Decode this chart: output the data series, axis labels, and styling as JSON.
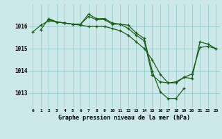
{
  "title": "Graphe pression niveau de la mer (hPa)",
  "bg_color": "#cce8e8",
  "grid_color": "#99cccc",
  "line_color": "#1a5c1a",
  "xlim": [
    -0.5,
    23.5
  ],
  "ylim": [
    1012.3,
    1017.0
  ],
  "yticks": [
    1013,
    1014,
    1015,
    1016
  ],
  "xticks": [
    0,
    1,
    2,
    3,
    4,
    5,
    6,
    7,
    8,
    9,
    10,
    11,
    12,
    13,
    14,
    15,
    16,
    17,
    18,
    19,
    20,
    21,
    22,
    23
  ],
  "series": [
    [
      null,
      1015.85,
      1016.35,
      1016.2,
      1016.15,
      1016.1,
      1016.1,
      1016.55,
      1016.35,
      1016.35,
      1016.15,
      1016.1,
      1016.05,
      1015.7,
      1015.45,
      1014.0,
      1013.05,
      1012.75,
      1012.75,
      1013.2,
      null,
      null,
      null,
      null
    ],
    [
      1015.75,
      1016.05,
      1016.25,
      1016.2,
      1016.15,
      1016.1,
      1016.05,
      1016.0,
      1016.0,
      1016.0,
      1015.9,
      1015.8,
      1015.6,
      1015.3,
      1015.0,
      1014.5,
      1013.85,
      1013.45,
      1013.5,
      1013.7,
      1013.85,
      1015.05,
      1015.1,
      1015.0
    ],
    [
      null,
      null,
      1016.3,
      1016.2,
      1016.15,
      1016.1,
      1016.1,
      1016.45,
      1016.3,
      1016.3,
      1016.1,
      1016.1,
      1015.9,
      1015.6,
      1015.35,
      1013.8,
      1013.5,
      1013.45,
      1013.45,
      1013.7,
      1013.65,
      1015.3,
      1015.2,
      1015.0
    ]
  ]
}
